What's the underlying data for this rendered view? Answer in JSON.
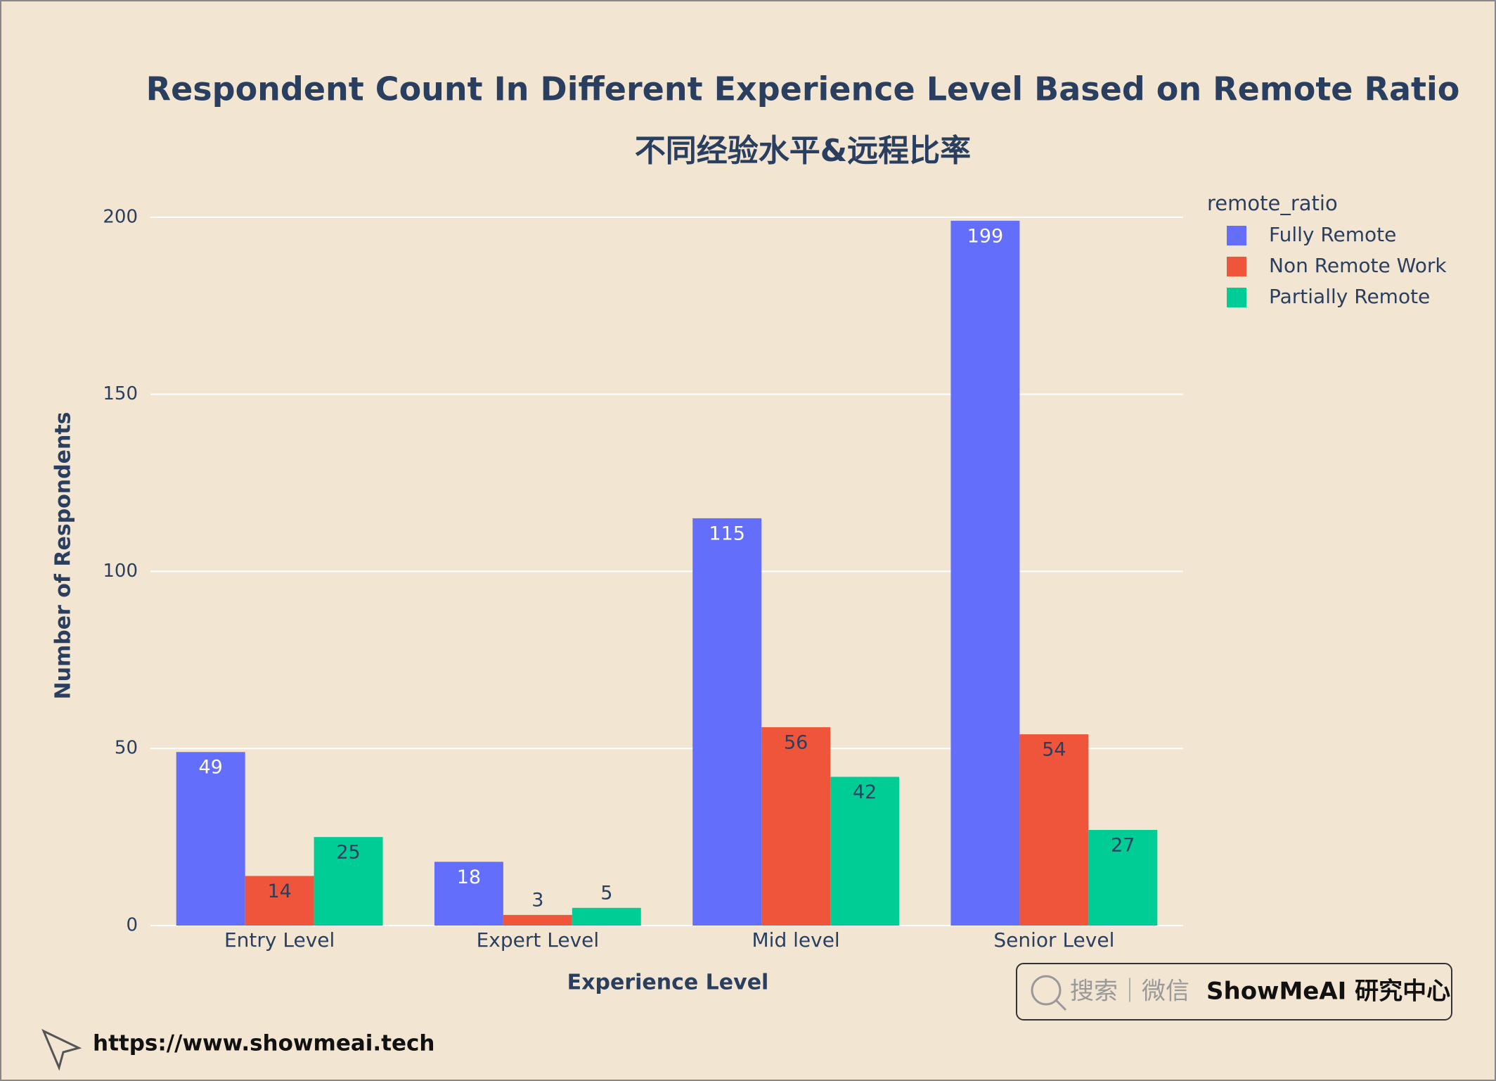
{
  "chart_data": {
    "type": "bar",
    "title": "Respondent Count In Different Experience Level Based on Remote Ratio",
    "subtitle": "不同经验水平&远程比率",
    "x_label": "Experience Level",
    "y_label": "Number of Respondents",
    "legend_title": "remote_ratio",
    "legend_position": "top-right",
    "categories": [
      "Entry Level",
      "Expert Level",
      "Mid level",
      "Senior Level"
    ],
    "series": [
      {
        "name": "Fully Remote",
        "color": "#636efa",
        "values": [
          49,
          18,
          115,
          199
        ]
      },
      {
        "name": "Non Remote Work",
        "color": "#ef553b",
        "values": [
          14,
          3,
          56,
          54
        ]
      },
      {
        "name": "Partially Remote",
        "color": "#00cc96",
        "values": [
          25,
          5,
          42,
          27
        ]
      }
    ],
    "ylim": [
      0,
      209.5
    ],
    "yticks": [
      0,
      50,
      100,
      150,
      200
    ],
    "grid": true
  },
  "watermark": {
    "search": "搜索｜微信",
    "brand": "ShowMeAI 研究中心"
  },
  "url": "https://www.showmeai.tech"
}
